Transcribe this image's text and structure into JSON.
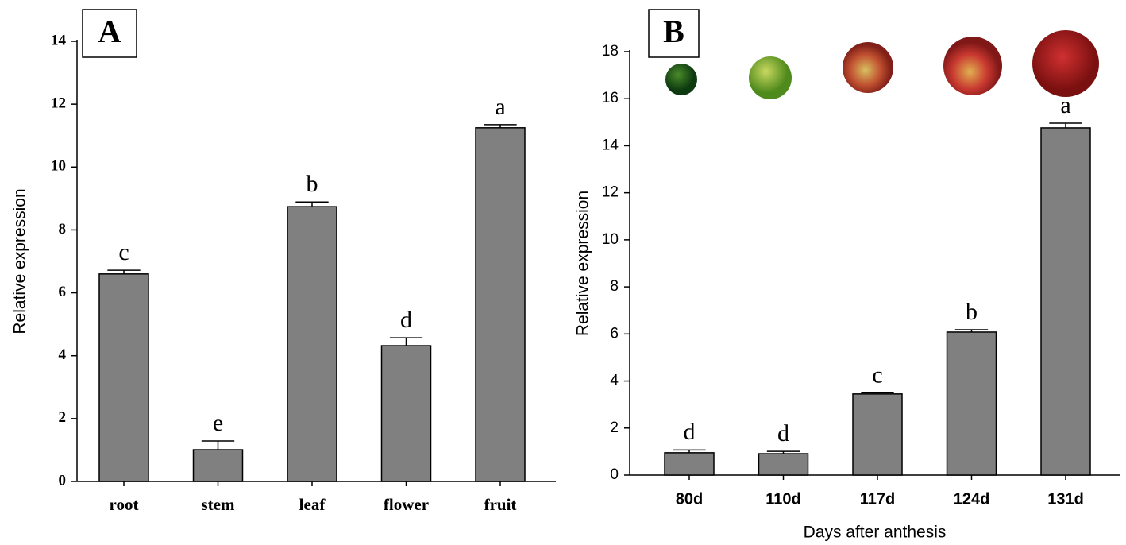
{
  "chart_data": [
    {
      "type": "bar",
      "panel_label": "A",
      "y_label": "Relative expression",
      "categories": [
        "root",
        "stem",
        "leaf",
        "flower",
        "fruit"
      ],
      "values": [
        6.6,
        1.01,
        8.74,
        4.32,
        11.25
      ],
      "errors": [
        0.12,
        0.28,
        0.15,
        0.25,
        0.1
      ],
      "annotations": [
        "c",
        "e",
        "b",
        "d",
        "a"
      ],
      "color": "#808080",
      "ylim": [
        0,
        14
      ],
      "yticks": [
        0,
        2,
        4,
        6,
        8,
        10,
        12,
        14
      ]
    },
    {
      "type": "bar",
      "panel_label": "B",
      "y_label": "Relative expression",
      "x_label": "Days after anthesis",
      "categories": [
        "80d",
        "110d",
        "117d",
        "124d",
        "131d"
      ],
      "values": [
        0.95,
        0.91,
        3.45,
        6.08,
        14.76
      ],
      "errors": [
        0.12,
        0.1,
        0.05,
        0.1,
        0.2
      ],
      "annotations": [
        "d",
        "d",
        "c",
        "b",
        "a"
      ],
      "color": "#808080",
      "ylim": [
        0,
        18
      ],
      "yticks": [
        0,
        2,
        4,
        6,
        8,
        10,
        12,
        14,
        16,
        18
      ]
    }
  ]
}
